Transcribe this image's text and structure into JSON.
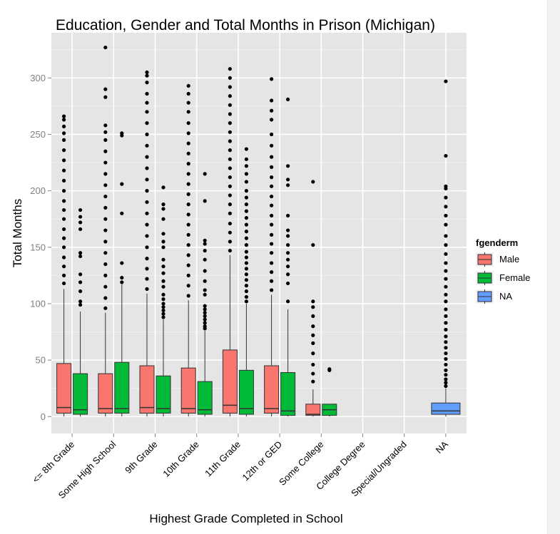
{
  "chart_data": {
    "type": "boxplot",
    "title": "Education, Gender and Total Months in Prison (Michigan)",
    "xlabel": "Highest Grade Completed in School",
    "ylabel": "Total Months",
    "ylim": [
      -15,
      340
    ],
    "yticks": [
      0,
      50,
      100,
      150,
      200,
      250,
      300
    ],
    "categories": [
      "<= 8th Grade",
      "Some High School",
      "9th Grade",
      "10th Grade",
      "11th Grade",
      "12th or GED",
      "Some College",
      "College Degree",
      "Special/Ungraded",
      "NA"
    ],
    "grid": true,
    "legend": {
      "title": "fgenderm",
      "position": "right",
      "entries": [
        {
          "label": "Male",
          "color": "#F8766D"
        },
        {
          "label": "Female",
          "color": "#00BA38"
        },
        {
          "label": "NA",
          "color": "#619CFF"
        }
      ]
    },
    "series": [
      {
        "name": "Male",
        "color": "#F8766D",
        "boxes": [
          {
            "category": "<= 8th Grade",
            "q1": 3,
            "median": 8,
            "q3": 47,
            "whisker_low": 0,
            "whisker_high": 113,
            "outliers": [
              118,
              125,
              133,
              141,
              150,
              158,
              166,
              175,
              183,
              191,
              200,
              209,
              218,
              227,
              236,
              245,
              251,
              257,
              263,
              266
            ]
          },
          {
            "category": "Some High School",
            "q1": 3,
            "median": 7,
            "q3": 38,
            "whisker_low": 0,
            "whisker_high": 92,
            "outliers": [
              96,
              105,
              115,
              125,
              135,
              145,
              155,
              165,
              175,
              185,
              195,
              205,
              215,
              225,
              235,
              245,
              252,
              258,
              283,
              290,
              327
            ]
          },
          {
            "category": "9th Grade",
            "q1": 3,
            "median": 8,
            "q3": 45,
            "whisker_low": 0,
            "whisker_high": 109,
            "outliers": [
              113,
              122,
              131,
              140,
              150,
              160,
              170,
              180,
              190,
              200,
              210,
              220,
              230,
              240,
              250,
              260,
              270,
              278,
              286,
              296,
              302,
              305
            ]
          },
          {
            "category": "10th Grade",
            "q1": 3,
            "median": 7,
            "q3": 43,
            "whisker_low": 0,
            "whisker_high": 103,
            "outliers": [
              107,
              116,
              125,
              134,
              143,
              152,
              161,
              170,
              179,
              188,
              197,
              206,
              215,
              224,
              233,
              242,
              251,
              260,
              270,
              278,
              286,
              293
            ]
          },
          {
            "category": "11th Grade",
            "q1": 3,
            "median": 10,
            "q3": 59,
            "whisker_low": 0,
            "whisker_high": 143,
            "outliers": [
              147,
              155,
              163,
              171,
              180,
              188,
              196,
              204,
              212,
              220,
              228,
              236,
              244,
              252,
              260,
              268,
              276,
              284,
              292,
              300,
              308
            ]
          },
          {
            "category": "12th or GED",
            "q1": 3,
            "median": 7,
            "q3": 45,
            "whisker_low": 0,
            "whisker_high": 108,
            "outliers": [
              112,
              120,
              128,
              136,
              145,
              153,
              161,
              170,
              178,
              187,
              195,
              204,
              212,
              221,
              230,
              240,
              250,
              263,
              271,
              280,
              299
            ]
          },
          {
            "category": "Some College",
            "q1": 1,
            "median": 2,
            "q3": 11,
            "whisker_low": 0,
            "whisker_high": 24,
            "outliers": [
              31,
              38,
              46,
              56,
              65,
              72,
              80,
              89,
              97,
              102,
              152,
              208
            ]
          },
          {
            "category": "College Degree",
            "empty": true
          },
          {
            "category": "Special/Ungraded",
            "empty": true
          }
        ]
      },
      {
        "name": "Female",
        "color": "#00BA38",
        "boxes": [
          {
            "category": "<= 8th Grade",
            "q1": 2,
            "median": 6,
            "q3": 38,
            "whisker_low": 0,
            "whisker_high": 93,
            "outliers": [
              99,
              102,
              111,
              119,
              126,
              142,
              145,
              166,
              172,
              177,
              183
            ]
          },
          {
            "category": "Some High School",
            "q1": 3,
            "median": 7,
            "q3": 48,
            "whisker_low": 0,
            "whisker_high": 117,
            "outliers": [
              119,
              123,
              136,
              180,
              206,
              249,
              251
            ]
          },
          {
            "category": "9th Grade",
            "q1": 3,
            "median": 7,
            "q3": 36,
            "whisker_low": 0,
            "whisker_high": 86,
            "outliers": [
              88,
              91,
              94,
              97,
              100,
              104,
              108,
              115,
              120,
              127,
              133,
              139,
              150,
              155,
              162,
              175,
              184,
              188,
              203
            ]
          },
          {
            "category": "10th Grade",
            "q1": 2,
            "median": 6,
            "q3": 31,
            "whisker_low": 0,
            "whisker_high": 76,
            "outliers": [
              78,
              80,
              83,
              86,
              89,
              92,
              95,
              98,
              108,
              112,
              120,
              129,
              139,
              147,
              153,
              156,
              191,
              215
            ]
          },
          {
            "category": "11th Grade",
            "q1": 2,
            "median": 7,
            "q3": 41,
            "whisker_low": 0,
            "whisker_high": 100,
            "outliers": [
              102,
              106,
              111,
              116,
              121,
              126,
              131,
              136,
              141,
              146,
              152,
              158,
              164,
              170,
              176,
              182,
              188,
              194,
              200,
              208,
              215,
              222,
              228,
              237
            ]
          },
          {
            "category": "12th or GED",
            "q1": 1,
            "median": 5,
            "q3": 39,
            "whisker_low": 0,
            "whisker_high": 95,
            "outliers": [
              102,
              118,
              126,
              133,
              139,
              145,
              152,
              160,
              165,
              178,
              205,
              210,
              222,
              281
            ]
          },
          {
            "category": "Some College",
            "q1": 1,
            "median": 6,
            "q3": 11,
            "whisker_low": 0,
            "whisker_high": 11,
            "outliers": [
              41,
              42
            ]
          },
          {
            "category": "College Degree",
            "empty": true
          },
          {
            "category": "Special/Ungraded",
            "empty": true
          }
        ]
      },
      {
        "name": "NA",
        "color": "#619CFF",
        "boxes": [
          {
            "category": "NA",
            "q1": 2,
            "median": 5,
            "q3": 12,
            "whisker_low": 0,
            "whisker_high": 25,
            "outliers": [
              27,
              30,
              33,
              37,
              41,
              46,
              51,
              56,
              61,
              66,
              71,
              77,
              83,
              89,
              95,
              102,
              108,
              115,
              122,
              129,
              136,
              144,
              152,
              160,
              170,
              178,
              186,
              194,
              202,
              204,
              231,
              297
            ]
          }
        ]
      }
    ]
  }
}
